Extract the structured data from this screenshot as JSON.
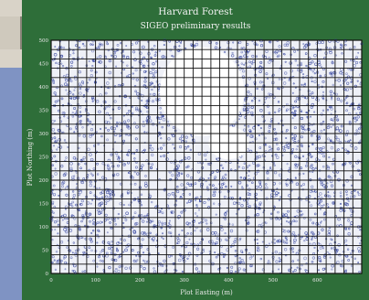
{
  "colors": {
    "panel_background": "#2e6e39",
    "plot_background": "#eef0f7",
    "stem_points": "#3848a0",
    "quadrat_grid": "#111111",
    "left_beige": "#d9d3c8",
    "left_blue": "#7f93c3"
  },
  "chart_data": {
    "type": "scatter",
    "title": "Harvard Forest",
    "subtitle": "SIGEO preliminary results",
    "xlabel": "Plot Easting (m)",
    "ylabel": "Plot Northing (m)",
    "xlim": [
      0,
      700
    ],
    "ylim": [
      0,
      500
    ],
    "x_ticks": [
      0,
      100,
      200,
      300,
      400,
      500,
      600
    ],
    "y_ticks": [
      0,
      50,
      100,
      150,
      200,
      250,
      300,
      350,
      400,
      450,
      500
    ],
    "grid": true,
    "quadrat_size_m": 20,
    "description": "Stem map of mapped trees shown as dense blue points over a 20 m quadrat grid; a large blank (unsurveyed) region lies in the upper center of the plot.",
    "legend": "none"
  }
}
